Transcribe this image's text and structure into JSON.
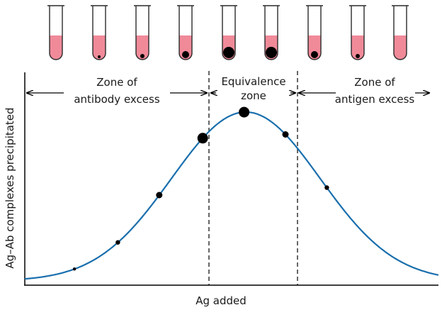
{
  "colors": {
    "curve": "#1a6fad",
    "liquid": "#f08a99",
    "tube_outline": "#2a2a2a",
    "precipitate": "#000000",
    "axis": "#000000"
  },
  "tubes": [
    {
      "precipitate": 0
    },
    {
      "precipitate": 1
    },
    {
      "precipitate": 2
    },
    {
      "precipitate": 3
    },
    {
      "precipitate": 4
    },
    {
      "precipitate": 4
    },
    {
      "precipitate": 3
    },
    {
      "precipitate": 2
    },
    {
      "precipitate": 0
    }
  ],
  "zones": {
    "antibody_excess": {
      "line1": "Zone of",
      "line2": "antibody excess"
    },
    "equivalence": {
      "line1": "Equivalence",
      "line2": "zone"
    },
    "antigen_excess": {
      "line1": "Zone of",
      "line2": "antigen excess"
    }
  },
  "axes": {
    "xlabel": "Ag added",
    "ylabel": "Ag–Ab complexes precipitated"
  },
  "curve_points": [
    {
      "x": 0.18,
      "size": 1
    },
    {
      "x": 0.285,
      "size": 2
    },
    {
      "x": 0.385,
      "size": 3
    },
    {
      "x": 0.49,
      "size": 4
    },
    {
      "x": 0.59,
      "size": 4
    },
    {
      "x": 0.69,
      "size": 3
    },
    {
      "x": 0.79,
      "size": 2
    }
  ]
}
